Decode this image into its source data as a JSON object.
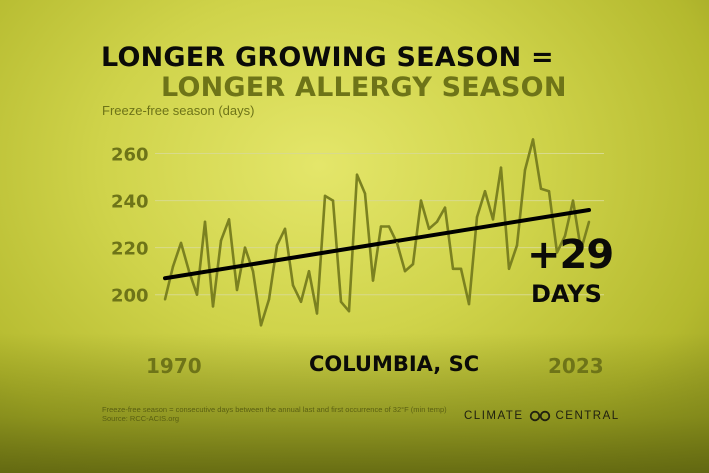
{
  "title_line1": "LONGER GROWING SEASON =",
  "title_line2": "LONGER ALLERGY SEASON",
  "location": "COLUMBIA, SC",
  "footnote": "Freeze-free season = consecutive days between the annual last and first occurrence of 32°F (min temp)",
  "source": "Source: RCC-ACIS.org",
  "logo_text_left": "CLIMATE",
  "logo_text_right": "CENTRAL",
  "annotation": {
    "value": "+29",
    "unit": "DAYS"
  },
  "colors": {
    "series": "#7b8120",
    "trend": "#000000",
    "grid": "#d8da8c"
  },
  "chart_data": {
    "type": "line",
    "ylabel": "Freeze-free season (days)",
    "xlabel": "",
    "x_tick_labels": [
      "1970",
      "2023"
    ],
    "y_ticks": [
      200,
      220,
      240,
      260
    ],
    "xlim": [
      1970,
      2023
    ],
    "ylim": [
      185,
      270
    ],
    "grid": true,
    "series": [
      {
        "values": [
          {
            "x": 1970,
            "y": 198
          },
          {
            "x": 1971,
            "y": 212
          },
          {
            "x": 1972,
            "y": 222
          },
          {
            "x": 1973,
            "y": 210
          },
          {
            "x": 1974,
            "y": 200
          },
          {
            "x": 1975,
            "y": 231
          },
          {
            "x": 1976,
            "y": 195
          },
          {
            "x": 1977,
            "y": 223
          },
          {
            "x": 1978,
            "y": 232
          },
          {
            "x": 1979,
            "y": 202
          },
          {
            "x": 1980,
            "y": 220
          },
          {
            "x": 1981,
            "y": 210
          },
          {
            "x": 1982,
            "y": 187
          },
          {
            "x": 1983,
            "y": 198
          },
          {
            "x": 1984,
            "y": 221
          },
          {
            "x": 1985,
            "y": 228
          },
          {
            "x": 1986,
            "y": 204
          },
          {
            "x": 1987,
            "y": 197
          },
          {
            "x": 1988,
            "y": 210
          },
          {
            "x": 1989,
            "y": 192
          },
          {
            "x": 1990,
            "y": 242
          },
          {
            "x": 1991,
            "y": 240
          },
          {
            "x": 1992,
            "y": 197
          },
          {
            "x": 1993,
            "y": 193
          },
          {
            "x": 1994,
            "y": 251
          },
          {
            "x": 1995,
            "y": 243
          },
          {
            "x": 1996,
            "y": 206
          },
          {
            "x": 1997,
            "y": 229
          },
          {
            "x": 1998,
            "y": 229
          },
          {
            "x": 1999,
            "y": 222
          },
          {
            "x": 2000,
            "y": 210
          },
          {
            "x": 2001,
            "y": 213
          },
          {
            "x": 2002,
            "y": 240
          },
          {
            "x": 2003,
            "y": 228
          },
          {
            "x": 2004,
            "y": 231
          },
          {
            "x": 2005,
            "y": 237
          },
          {
            "x": 2006,
            "y": 211
          },
          {
            "x": 2007,
            "y": 211
          },
          {
            "x": 2008,
            "y": 196
          },
          {
            "x": 2009,
            "y": 233
          },
          {
            "x": 2010,
            "y": 244
          },
          {
            "x": 2011,
            "y": 232
          },
          {
            "x": 2012,
            "y": 254
          },
          {
            "x": 2013,
            "y": 211
          },
          {
            "x": 2014,
            "y": 221
          },
          {
            "x": 2015,
            "y": 253
          },
          {
            "x": 2016,
            "y": 266
          },
          {
            "x": 2017,
            "y": 245
          },
          {
            "x": 2018,
            "y": 244
          },
          {
            "x": 2019,
            "y": 218
          },
          {
            "x": 2020,
            "y": 225
          },
          {
            "x": 2021,
            "y": 240
          },
          {
            "x": 2022,
            "y": 219
          },
          {
            "x": 2023,
            "y": 231
          }
        ]
      }
    ],
    "trend": {
      "start": {
        "x": 1970,
        "y": 207
      },
      "end": {
        "x": 2023,
        "y": 236
      }
    }
  }
}
